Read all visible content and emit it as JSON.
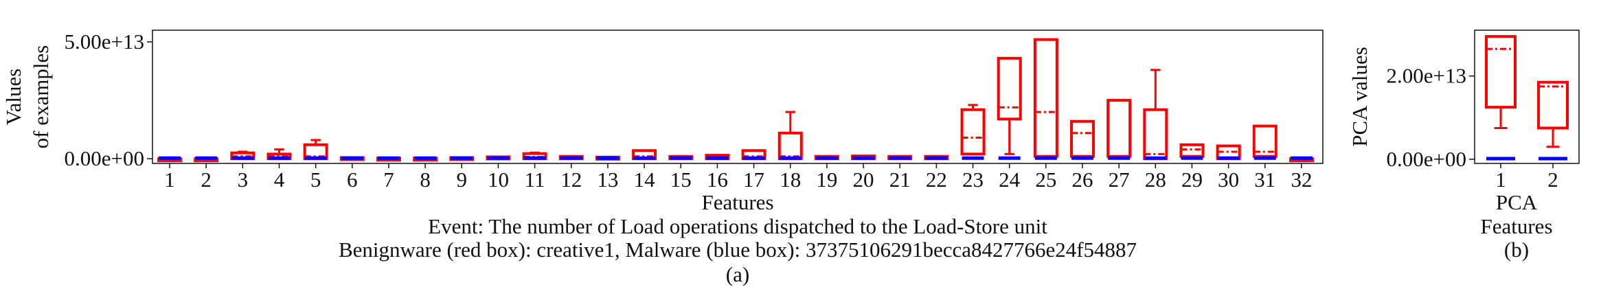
{
  "colors": {
    "benign": "#ff0000",
    "malware": "#0000ff",
    "axis": "#111111"
  },
  "chart_data": [
    {
      "type": "box",
      "panel": "(a)",
      "xlabel": "Features",
      "ylabel": [
        "Values",
        "of examples"
      ],
      "ytick_labels": [
        "0.00e+00",
        "5.00e+13"
      ],
      "ytick_values": [
        0,
        50000000000000
      ],
      "ylim": [
        -2000000000000,
        55000000000000
      ],
      "caption_lines": [
        "Event: The number of Load operations dispatched to the Load-Store unit",
        "Benignware (red box): creative1, Malware (blue box): 37375106291becca8427766e24f54887"
      ],
      "categories": [
        "1",
        "2",
        "3",
        "4",
        "5",
        "6",
        "7",
        "8",
        "9",
        "10",
        "11",
        "12",
        "13",
        "14",
        "15",
        "16",
        "17",
        "18",
        "19",
        "20",
        "21",
        "22",
        "23",
        "24",
        "25",
        "26",
        "27",
        "28",
        "29",
        "30",
        "31",
        "32"
      ],
      "series": [
        {
          "name": "Benignware (red box): creative1",
          "color": "#ff0000",
          "boxes": [
            {
              "min": 0,
              "q1": 0,
              "median": 0,
              "q3": 0,
              "max": 0
            },
            {
              "min": 0,
              "q1": 0,
              "median": 0,
              "q3": 0,
              "max": 0
            },
            {
              "min": 0,
              "q1": 0,
              "median": 1000000000000,
              "q3": 2500000000000,
              "max": 3000000000000
            },
            {
              "min": 0,
              "q1": 0,
              "median": 1000000000000,
              "q3": 2000000000000,
              "max": 4000000000000
            },
            {
              "min": 0,
              "q1": 0,
              "median": 1000000000000,
              "q3": 6000000000000,
              "max": 8000000000000
            },
            {
              "min": 0,
              "q1": 0,
              "median": 0,
              "q3": 500000000000,
              "max": 500000000000
            },
            {
              "min": 0,
              "q1": 0,
              "median": 0,
              "q3": 300000000000,
              "max": 300000000000
            },
            {
              "min": 0,
              "q1": 0,
              "median": 0,
              "q3": 300000000000,
              "max": 300000000000
            },
            {
              "min": 0,
              "q1": 0,
              "median": 0,
              "q3": 500000000000,
              "max": 500000000000
            },
            {
              "min": 0,
              "q1": 0,
              "median": 0,
              "q3": 800000000000,
              "max": 800000000000
            },
            {
              "min": 0,
              "q1": 0,
              "median": 800000000000,
              "q3": 2200000000000,
              "max": 2600000000000
            },
            {
              "min": 0,
              "q1": 0,
              "median": 500000000000,
              "q3": 1000000000000,
              "max": 1000000000000
            },
            {
              "min": 0,
              "q1": 0,
              "median": 0,
              "q3": 700000000000,
              "max": 700000000000
            },
            {
              "min": 0,
              "q1": 0,
              "median": 1000000000000,
              "q3": 3500000000000,
              "max": 3500000000000
            },
            {
              "min": 0,
              "q1": 0,
              "median": 500000000000,
              "q3": 1000000000000,
              "max": 1000000000000
            },
            {
              "min": 0,
              "q1": 0,
              "median": 500000000000,
              "q3": 1500000000000,
              "max": 1500000000000
            },
            {
              "min": 0,
              "q1": 0,
              "median": 1000000000000,
              "q3": 3500000000000,
              "max": 3500000000000
            },
            {
              "min": 0,
              "q1": 0,
              "median": 1000000000000,
              "q3": 11000000000000,
              "max": 20000000000000
            },
            {
              "min": 0,
              "q1": 0,
              "median": 500000000000,
              "q3": 1000000000000,
              "max": 1000000000000
            },
            {
              "min": 0,
              "q1": 0,
              "median": 500000000000,
              "q3": 1200000000000,
              "max": 1200000000000
            },
            {
              "min": 0,
              "q1": 0,
              "median": 500000000000,
              "q3": 1000000000000,
              "max": 1000000000000
            },
            {
              "min": 0,
              "q1": 0,
              "median": 500000000000,
              "q3": 1000000000000,
              "max": 1000000000000
            },
            {
              "min": 2000000000000,
              "q1": 2000000000000,
              "median": 9000000000000,
              "q3": 21000000000000,
              "max": 23000000000000
            },
            {
              "min": 2000000000000,
              "q1": 17000000000000,
              "median": 22000000000000,
              "q3": 43000000000000,
              "max": 43000000000000
            },
            {
              "min": 1000000000000,
              "q1": 1000000000000,
              "median": 20000000000000,
              "q3": 51000000000000,
              "max": 51000000000000
            },
            {
              "min": 1000000000000,
              "q1": 1000000000000,
              "median": 11000000000000,
              "q3": 16000000000000,
              "max": 16000000000000
            },
            {
              "min": 1000000000000,
              "q1": 1000000000000,
              "median": 1000000000000,
              "q3": 25000000000000,
              "max": 25000000000000
            },
            {
              "min": 0,
              "q1": 0,
              "median": 2000000000000,
              "q3": 21000000000000,
              "max": 38000000000000
            },
            {
              "min": 1000000000000,
              "q1": 1000000000000,
              "median": 4000000000000,
              "q3": 6000000000000,
              "max": 6000000000000
            },
            {
              "min": 0,
              "q1": 0,
              "median": 3000000000000,
              "q3": 5500000000000,
              "max": 5500000000000
            },
            {
              "min": 1000000000000,
              "q1": 1000000000000,
              "median": 3000000000000,
              "q3": 14000000000000,
              "max": 14000000000000
            },
            {
              "min": 0,
              "q1": 0,
              "median": 0,
              "q3": 0,
              "max": 0
            }
          ]
        },
        {
          "name": "Malware (blue box): 37375106291becca8427766e24f54887",
          "color": "#0000ff",
          "boxes": "near zero for all 32 features"
        }
      ]
    },
    {
      "type": "box",
      "panel": "(b)",
      "xlabel": [
        "PCA",
        "Features"
      ],
      "ylabel": "PCA values",
      "ytick_labels": [
        "0.00e+00",
        "2.00e+13"
      ],
      "ytick_values": [
        0,
        20000000000000
      ],
      "ylim": [
        -1000000000000,
        31000000000000
      ],
      "categories": [
        "1",
        "2"
      ],
      "series": [
        {
          "name": "Benignware",
          "color": "#ff0000",
          "boxes": [
            {
              "min": 7500000000000,
              "q1": 12500000000000,
              "median": 26500000000000,
              "q3": 29500000000000,
              "max": 29500000000000
            },
            {
              "min": 3000000000000,
              "q1": 7500000000000,
              "median": 17500000000000,
              "q3": 18500000000000,
              "max": 18500000000000
            }
          ]
        },
        {
          "name": "Malware",
          "color": "#0000ff",
          "boxes": "near zero for both PCA features"
        }
      ]
    }
  ]
}
